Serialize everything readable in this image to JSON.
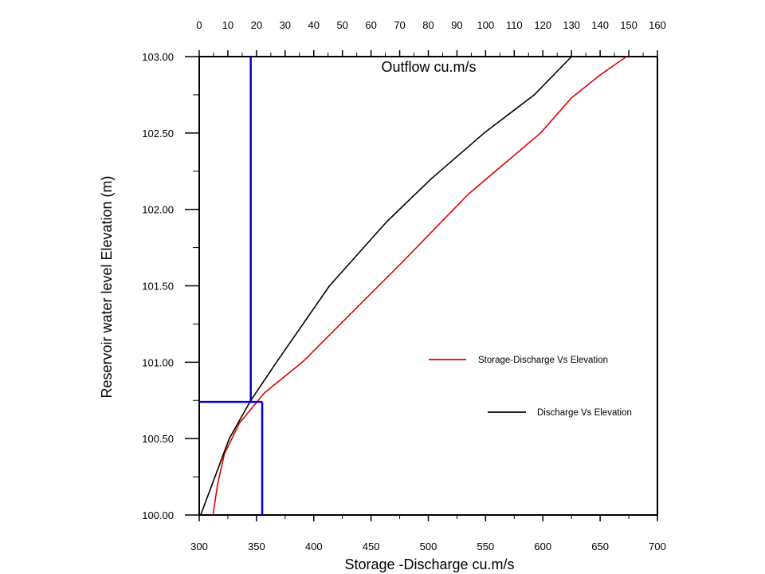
{
  "chart_data": {
    "type": "line",
    "xlabel": "Storage -Discharge cu.m/s",
    "x2label": "Outflow cu.m/s",
    "ylabel": "Reservoir water level Elevation (m)",
    "xlim": [
      300,
      700
    ],
    "x2lim": [
      0,
      160
    ],
    "ylim": [
      100.0,
      103.0
    ],
    "x_ticks": [
      "300",
      "350",
      "400",
      "450",
      "500",
      "550",
      "600",
      "650",
      "700"
    ],
    "x2_ticks": [
      "0",
      "10",
      "20",
      "30",
      "40",
      "50",
      "60",
      "70",
      "80",
      "90",
      "100",
      "110",
      "120",
      "130",
      "140",
      "150",
      "160"
    ],
    "y_ticks": [
      "100.00",
      "100.50",
      "101.00",
      "101.50",
      "102.00",
      "102.50",
      "103.00"
    ],
    "grid": false,
    "legend_position": "right",
    "series": [
      {
        "name": "Storage-Discharge Vs Elevation",
        "axis": "bottom",
        "color": "#e00000",
        "points": [
          [
            312,
            100.0
          ],
          [
            316,
            100.2
          ],
          [
            322,
            100.4
          ],
          [
            335,
            100.6
          ],
          [
            357,
            100.8
          ],
          [
            390,
            101.0
          ],
          [
            430,
            101.3
          ],
          [
            478,
            101.66
          ],
          [
            535,
            102.1
          ],
          [
            598,
            102.5
          ],
          [
            625,
            102.73
          ],
          [
            650,
            102.88
          ],
          [
            673,
            103.0
          ]
        ]
      },
      {
        "name": "Discharge Vs Elevation",
        "axis": "top",
        "color": "#000000",
        "points": [
          [
            0.5,
            100.0
          ],
          [
            10.5,
            100.5
          ],
          [
            18,
            100.75
          ],
          [
            27,
            101.0
          ],
          [
            45.5,
            101.5
          ],
          [
            65.5,
            101.92
          ],
          [
            81,
            102.2
          ],
          [
            99.5,
            102.5
          ],
          [
            117,
            102.75
          ],
          [
            130,
            103.0
          ]
        ]
      }
    ],
    "reference_lines": [
      {
        "name": "horizontal",
        "color": "#0000cc",
        "y": 100.74,
        "x_from": 300,
        "x_to": 355
      },
      {
        "name": "vertical-storage",
        "color": "#0000cc",
        "x": 355,
        "y_from": 100.0,
        "y_to": 100.74
      },
      {
        "name": "vertical-outflow",
        "color": "#0000cc",
        "x2": 18,
        "y_from": 100.74,
        "y_to": 103.0
      }
    ]
  }
}
